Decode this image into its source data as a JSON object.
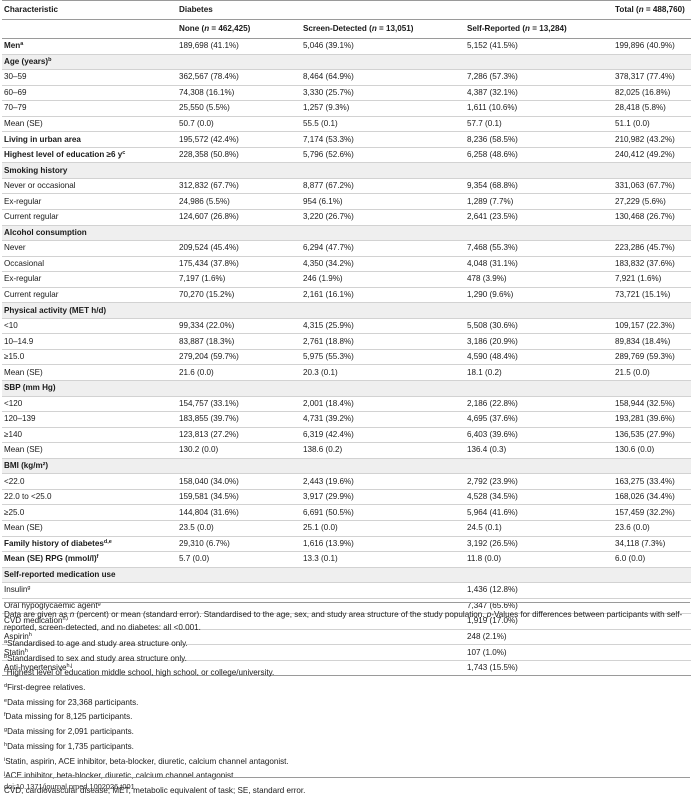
{
  "header": {
    "characteristic": "Characteristic",
    "diabetes": "Diabetes",
    "total": "Total (n = 488,760)",
    "none": "None (n = 462,425)",
    "screen": "Screen-Detected (n = 13,051)",
    "self": "Self-Reported (n = 13,284)"
  },
  "rows": [
    {
      "label": "Men",
      "sup": "a",
      "bold": true,
      "section": false,
      "values": [
        "189,698 (41.1%)",
        "5,046 (39.1%)",
        "5,152 (41.5%)",
        "199,896 (40.9%)"
      ]
    },
    {
      "label": "Age (years)",
      "sup": "b",
      "bold": true,
      "section": true,
      "values": [
        "",
        "",
        "",
        ""
      ]
    },
    {
      "label": "30–59",
      "sup": "",
      "bold": false,
      "section": false,
      "values": [
        "362,567 (78.4%)",
        "8,464 (64.9%)",
        "7,286 (57.3%)",
        "378,317 (77.4%)"
      ]
    },
    {
      "label": "60–69",
      "sup": "",
      "bold": false,
      "section": false,
      "values": [
        "74,308 (16.1%)",
        "3,330 (25.7%)",
        "4,387 (32.1%)",
        "82,025 (16.8%)"
      ]
    },
    {
      "label": "70–79",
      "sup": "",
      "bold": false,
      "section": false,
      "values": [
        "25,550 (5.5%)",
        "1,257 (9.3%)",
        "1,611 (10.6%)",
        "28,418 (5.8%)"
      ]
    },
    {
      "label": "Mean (SE)",
      "sup": "",
      "bold": false,
      "section": false,
      "values": [
        "50.7 (0.0)",
        "55.5 (0.1)",
        "57.7 (0.1)",
        "51.1 (0.0)"
      ]
    },
    {
      "label": "Living in urban area",
      "sup": "",
      "bold": true,
      "section": false,
      "values": [
        "195,572 (42.4%)",
        "7,174 (53.3%)",
        "8,236 (58.5%)",
        "210,982 (43.2%)"
      ]
    },
    {
      "label": "Highest level of education ≥6 y",
      "sup": "c",
      "bold": true,
      "section": false,
      "values": [
        "228,358 (50.8%)",
        "5,796 (52.6%)",
        "6,258 (48.6%)",
        "240,412 (49.2%)"
      ]
    },
    {
      "label": "Smoking history",
      "sup": "",
      "bold": true,
      "section": true,
      "values": [
        "",
        "",
        "",
        ""
      ]
    },
    {
      "label": "Never or occasional",
      "sup": "",
      "bold": false,
      "section": false,
      "values": [
        "312,832 (67.7%)",
        "8,877 (67.2%)",
        "9,354 (68.8%)",
        "331,063 (67.7%)"
      ]
    },
    {
      "label": "Ex-regular",
      "sup": "",
      "bold": false,
      "section": false,
      "values": [
        "24,986 (5.5%)",
        "954 (6.1%)",
        "1,289 (7.7%)",
        "27,229 (5.6%)"
      ]
    },
    {
      "label": "Current regular",
      "sup": "",
      "bold": false,
      "section": false,
      "values": [
        "124,607 (26.8%)",
        "3,220 (26.7%)",
        "2,641 (23.5%)",
        "130,468 (26.7%)"
      ]
    },
    {
      "label": "Alcohol consumption",
      "sup": "",
      "bold": true,
      "section": true,
      "values": [
        "",
        "",
        "",
        ""
      ]
    },
    {
      "label": "Never",
      "sup": "",
      "bold": false,
      "section": false,
      "values": [
        "209,524 (45.4%)",
        "6,294 (47.7%)",
        "7,468 (55.3%)",
        "223,286 (45.7%)"
      ]
    },
    {
      "label": "Occasional",
      "sup": "",
      "bold": false,
      "section": false,
      "values": [
        "175,434 (37.8%)",
        "4,350 (34.2%)",
        "4,048 (31.1%)",
        "183,832 (37.6%)"
      ]
    },
    {
      "label": "Ex-regular",
      "sup": "",
      "bold": false,
      "section": false,
      "values": [
        "7,197 (1.6%)",
        "246 (1.9%)",
        "478 (3.9%)",
        "7,921 (1.6%)"
      ]
    },
    {
      "label": "Current regular",
      "sup": "",
      "bold": false,
      "section": false,
      "values": [
        "70,270 (15.2%)",
        "2,161 (16.1%)",
        "1,290 (9.6%)",
        "73,721 (15.1%)"
      ]
    },
    {
      "label": "Physical activity (MET h/d)",
      "sup": "",
      "bold": true,
      "section": true,
      "values": [
        "",
        "",
        "",
        ""
      ]
    },
    {
      "label": "<10",
      "sup": "",
      "bold": false,
      "section": false,
      "values": [
        "99,334 (22.0%)",
        "4,315 (25.9%)",
        "5,508 (30.6%)",
        "109,157 (22.3%)"
      ]
    },
    {
      "label": "10–14.9",
      "sup": "",
      "bold": false,
      "section": false,
      "values": [
        "83,887 (18.3%)",
        "2,761 (18.8%)",
        "3,186 (20.9%)",
        "89,834 (18.4%)"
      ]
    },
    {
      "label": "≥15.0",
      "sup": "",
      "bold": false,
      "section": false,
      "values": [
        "279,204 (59.7%)",
        "5,975 (55.3%)",
        "4,590 (48.4%)",
        "289,769 (59.3%)"
      ]
    },
    {
      "label": "Mean (SE)",
      "sup": "",
      "bold": false,
      "section": false,
      "values": [
        "21.6 (0.0)",
        "20.3 (0.1)",
        "18.1 (0.2)",
        "21.5 (0.0)"
      ]
    },
    {
      "label": "SBP (mm Hg)",
      "sup": "",
      "bold": true,
      "section": true,
      "values": [
        "",
        "",
        "",
        ""
      ]
    },
    {
      "label": "<120",
      "sup": "",
      "bold": false,
      "section": false,
      "values": [
        "154,757 (33.1%)",
        "2,001 (18.4%)",
        "2,186 (22.8%)",
        "158,944 (32.5%)"
      ]
    },
    {
      "label": "120–139",
      "sup": "",
      "bold": false,
      "section": false,
      "values": [
        "183,855 (39.7%)",
        "4,731 (39.2%)",
        "4,695 (37.6%)",
        "193,281 (39.6%)"
      ]
    },
    {
      "label": "≥140",
      "sup": "",
      "bold": false,
      "section": false,
      "values": [
        "123,813 (27.2%)",
        "6,319 (42.4%)",
        "6,403 (39.6%)",
        "136,535 (27.9%)"
      ]
    },
    {
      "label": "Mean (SE)",
      "sup": "",
      "bold": false,
      "section": false,
      "values": [
        "130.2 (0.0)",
        "138.6 (0.2)",
        "136.4 (0.3)",
        "130.6 (0.0)"
      ]
    },
    {
      "label": "BMI (kg/m²)",
      "sup": "",
      "bold": true,
      "section": true,
      "values": [
        "",
        "",
        "",
        ""
      ]
    },
    {
      "label": "<22.0",
      "sup": "",
      "bold": false,
      "section": false,
      "values": [
        "158,040 (34.0%)",
        "2,443 (19.6%)",
        "2,792 (23.9%)",
        "163,275 (33.4%)"
      ]
    },
    {
      "label": "22.0 to <25.0",
      "sup": "",
      "bold": false,
      "section": false,
      "values": [
        "159,581 (34.5%)",
        "3,917 (29.9%)",
        "4,528 (34.5%)",
        "168,026 (34.4%)"
      ]
    },
    {
      "label": "≥25.0",
      "sup": "",
      "bold": false,
      "section": false,
      "values": [
        "144,804 (31.6%)",
        "6,691 (50.5%)",
        "5,964 (41.6%)",
        "157,459 (32.2%)"
      ]
    },
    {
      "label": "Mean (SE)",
      "sup": "",
      "bold": false,
      "section": false,
      "values": [
        "23.5 (0.0)",
        "25.1 (0.0)",
        "24.5 (0.1)",
        "23.6 (0.0)"
      ]
    },
    {
      "label": "Family history of diabetes",
      "sup": "d,e",
      "bold": true,
      "section": false,
      "values": [
        "29,310 (6.7%)",
        "1,616 (13.9%)",
        "3,192 (26.5%)",
        "34,118 (7.3%)"
      ]
    },
    {
      "label": "Mean (SE) RPG (mmol/l)",
      "sup": "f",
      "bold": true,
      "section": false,
      "values": [
        "5.7 (0.0)",
        "13.3 (0.1)",
        "11.8 (0.0)",
        "6.0 (0.0)"
      ]
    },
    {
      "label": "Self-reported medication use",
      "sup": "",
      "bold": true,
      "section": true,
      "values": [
        "",
        "",
        "",
        ""
      ]
    },
    {
      "label": "Insulin",
      "sup": "g",
      "bold": false,
      "section": false,
      "values": [
        "",
        "",
        "1,436 (12.8%)",
        ""
      ]
    },
    {
      "label": "Oral hypoglycaemic agent",
      "sup": "g",
      "bold": false,
      "section": false,
      "values": [
        "",
        "",
        "7,347 (65.6%)",
        ""
      ]
    },
    {
      "label": "CVD medication",
      "sup": "h,i",
      "bold": false,
      "section": false,
      "values": [
        "",
        "",
        "1,919 (17.0%)",
        ""
      ]
    },
    {
      "label": "Aspirin",
      "sup": "h",
      "bold": false,
      "section": false,
      "values": [
        "",
        "",
        "248 (2.1%)",
        ""
      ]
    },
    {
      "label": "Statin",
      "sup": "h",
      "bold": false,
      "section": false,
      "values": [
        "",
        "",
        "107 (1.0%)",
        ""
      ]
    },
    {
      "label": "Anti-hypertensive",
      "sup": "h,j",
      "bold": false,
      "section": false,
      "values": [
        "",
        "",
        "1,743 (15.5%)",
        ""
      ]
    }
  ],
  "notes": {
    "lead": "Data are given as n (percent) or mean (standard error). Standardised to the age, sex, and study area structure of the study population. p-Values for differences between participants with self-reported, screen-detected, and no diabetes: all <0.001.",
    "items": [
      {
        "mark": "a",
        "text": "Standardised to age and study area structure only."
      },
      {
        "mark": "b",
        "text": "Standardised to sex and study area structure only."
      },
      {
        "mark": "c",
        "text": "Highest level of education middle school, high school, or college/university."
      },
      {
        "mark": "d",
        "text": "First-degree relatives."
      },
      {
        "mark": "e",
        "text": "Data missing for 23,368 participants."
      },
      {
        "mark": "f",
        "text": "Data missing for 8,125 participants."
      },
      {
        "mark": "g",
        "text": "Data missing for 2,091 participants."
      },
      {
        "mark": "h",
        "text": "Data missing for 1,735 participants."
      },
      {
        "mark": "i",
        "text": "Statin, aspirin, ACE inhibitor, beta-blocker, diuretic, calcium channel antagonist."
      },
      {
        "mark": "j",
        "text": "ACE inhibitor, beta-blocker, diuretic, calcium channel antagonist."
      }
    ],
    "abbrev": "CVD, cardiovascular disease; MET, metabolic equivalent of task; SE, standard error."
  },
  "doi": "doi:10.1371/journal.pmed.1002026.t001"
}
